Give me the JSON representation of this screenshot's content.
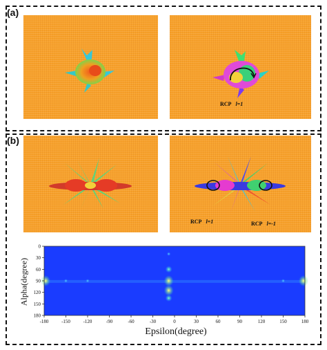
{
  "panels": {
    "a_label": "(a)",
    "b_label": "(b)"
  },
  "captions": {
    "a_right": {
      "mode": "RCP",
      "l": "l=1"
    },
    "b_right_left": {
      "mode": "RCP",
      "l": "l=1"
    },
    "b_right_right": {
      "mode": "RCP",
      "l": "l=-1"
    }
  },
  "colors": {
    "background_tile": "#f7a12a",
    "heatmap_bg": "#1a3cff",
    "frame": "#111111"
  },
  "chart_data": {
    "type": "heatmap",
    "xlabel": "Epsilon(degree)",
    "ylabel": "Alpha(degree)",
    "xlim": [
      -180,
      180
    ],
    "ylim": [
      0,
      180
    ],
    "x_ticks": [
      -180,
      -150,
      -120,
      -90,
      -60,
      -30,
      0,
      30,
      60,
      90,
      120,
      150,
      180
    ],
    "y_ticks": [
      0,
      30,
      60,
      90,
      120,
      150,
      180
    ],
    "hotspots": [
      {
        "epsilon": -8,
        "alpha": 90,
        "level": "high"
      },
      {
        "epsilon": -8,
        "alpha": 115,
        "level": "high"
      },
      {
        "epsilon": -8,
        "alpha": 135,
        "level": "medium"
      },
      {
        "epsilon": -8,
        "alpha": 60,
        "level": "medium"
      },
      {
        "epsilon": -8,
        "alpha": 20,
        "level": "low"
      },
      {
        "epsilon": -178,
        "alpha": 90,
        "level": "high"
      },
      {
        "epsilon": 178,
        "alpha": 90,
        "level": "high"
      },
      {
        "epsilon": -150,
        "alpha": 90,
        "level": "low"
      },
      {
        "epsilon": -120,
        "alpha": 90,
        "level": "low"
      },
      {
        "epsilon": 150,
        "alpha": 90,
        "level": "low"
      }
    ]
  }
}
